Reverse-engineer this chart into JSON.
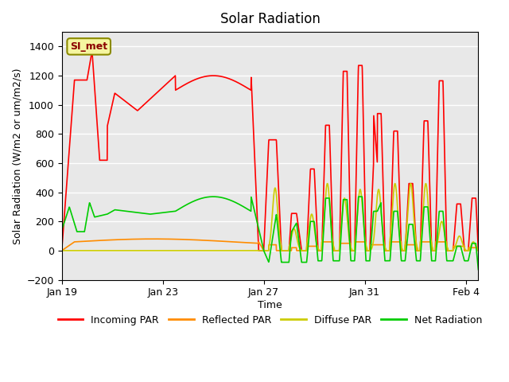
{
  "title": "Solar Radiation",
  "xlabel": "Time",
  "ylabel": "Solar Radiation (W/m2 or um/m2/s)",
  "ylim": [
    -200,
    1500
  ],
  "yticks": [
    -200,
    0,
    200,
    400,
    600,
    800,
    1000,
    1200,
    1400
  ],
  "background_color": "#e8e8e8",
  "legend_label": "SI_met",
  "legend_entries": [
    "Incoming PAR",
    "Reflected PAR",
    "Diffuse PAR",
    "Net Radiation"
  ],
  "legend_colors": [
    "#ff0000",
    "#ff8c00",
    "#cccc00",
    "#00cc00"
  ],
  "line_colors": {
    "incoming": "#ff0000",
    "reflected": "#ff8c00",
    "diffuse": "#cccc00",
    "net": "#00cc00"
  },
  "x_tick_labels": [
    "Jan 19",
    "Jan 23",
    "Jan 27",
    "Jan 31",
    "Feb 4"
  ],
  "x_tick_positions": [
    0,
    4,
    8,
    12,
    16
  ]
}
